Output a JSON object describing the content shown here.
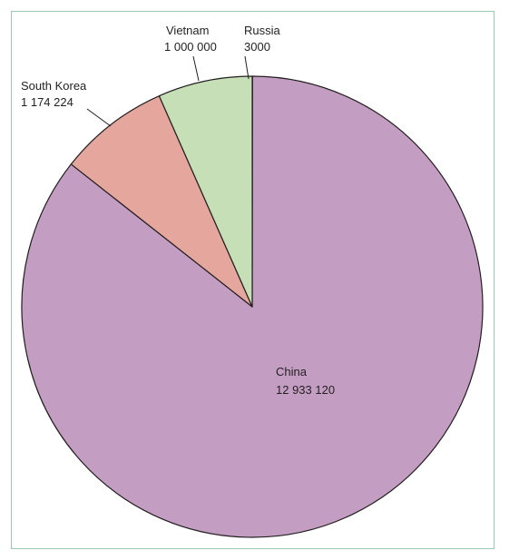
{
  "chart_data": {
    "type": "pie",
    "title": "",
    "slices": [
      {
        "label": "Russia",
        "value_label": "3000",
        "value": 3000,
        "color": "#3f4a3f"
      },
      {
        "label": "China",
        "value_label": "12 933 120",
        "value": 12933120,
        "color": "#c49dc3"
      },
      {
        "label": "South Korea",
        "value_label": "1 174 224",
        "value": 1174224,
        "color": "#e4a69d"
      },
      {
        "label": "Vietnam",
        "value_label": "1 000 000",
        "value": 1000000,
        "color": "#c6dfb7"
      }
    ],
    "start_angle_deg": 0,
    "direction": "clockwise",
    "stroke_color": "#231f20",
    "border_color": "#9cc9b3"
  }
}
